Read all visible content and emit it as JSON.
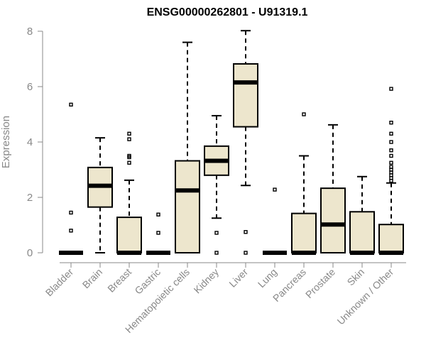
{
  "chart_data": {
    "type": "boxplot",
    "title": "ENSG00000262801 - U91319.1",
    "xlabel": "",
    "ylabel": "Expression",
    "ylim": [
      0,
      8
    ],
    "yticks": [
      0,
      2,
      4,
      6,
      8
    ],
    "grid": false,
    "box_color": "#ede6cd",
    "categories": [
      "Bladder",
      "Brain",
      "Breast",
      "Gastric",
      "Hematopoietic cells",
      "Kidney",
      "Liver",
      "Lung",
      "Pancreas",
      "Prostate",
      "Skin",
      "Unknown / Other"
    ],
    "series": [
      {
        "name": "Bladder",
        "min": 0,
        "q1": 0,
        "median": 0,
        "q3": 0,
        "max": 0,
        "outliers": [
          0.8,
          1.45,
          5.35
        ]
      },
      {
        "name": "Brain",
        "min": 0,
        "q1": 1.65,
        "median": 2.42,
        "q3": 3.08,
        "max": 4.15,
        "outliers": []
      },
      {
        "name": "Breast",
        "min": 0,
        "q1": 0,
        "median": 0,
        "q3": 1.28,
        "max": 2.62,
        "outliers": [
          3.25,
          3.45,
          3.5,
          4.1,
          4.3
        ]
      },
      {
        "name": "Gastric",
        "min": 0,
        "q1": 0,
        "median": 0,
        "q3": 0,
        "max": 0,
        "outliers": [
          0.72,
          1.38
        ]
      },
      {
        "name": "Hematopoietic cells",
        "min": 0,
        "q1": 0,
        "median": 2.25,
        "q3": 3.32,
        "max": 7.6,
        "outliers": []
      },
      {
        "name": "Kidney",
        "min": 1.25,
        "q1": 2.8,
        "median": 3.32,
        "q3": 3.85,
        "max": 4.95,
        "outliers": [
          0,
          0.72
        ]
      },
      {
        "name": "Liver",
        "min": 2.43,
        "q1": 4.55,
        "median": 6.15,
        "q3": 6.82,
        "max": 8.02,
        "outliers": [
          0,
          0.75
        ]
      },
      {
        "name": "Lung",
        "min": 0,
        "q1": 0,
        "median": 0,
        "q3": 0,
        "max": 0,
        "outliers": [
          2.28
        ]
      },
      {
        "name": "Pancreas",
        "min": 0,
        "q1": 0,
        "median": 0,
        "q3": 1.42,
        "max": 3.5,
        "outliers": [
          5.0
        ]
      },
      {
        "name": "Prostate",
        "min": 0,
        "q1": 0,
        "median": 1.02,
        "q3": 2.33,
        "max": 4.62,
        "outliers": []
      },
      {
        "name": "Skin",
        "min": 0,
        "q1": 0,
        "median": 0,
        "q3": 1.48,
        "max": 2.75,
        "outliers": []
      },
      {
        "name": "Unknown / Other",
        "min": 0,
        "q1": 0,
        "median": 0,
        "q3": 1.02,
        "max": 2.52,
        "outliers": [
          2.6,
          2.7,
          2.8,
          2.9,
          3.0,
          3.1,
          3.25,
          3.5,
          3.7,
          4.0,
          4.3,
          4.7,
          5.92
        ]
      }
    ]
  }
}
